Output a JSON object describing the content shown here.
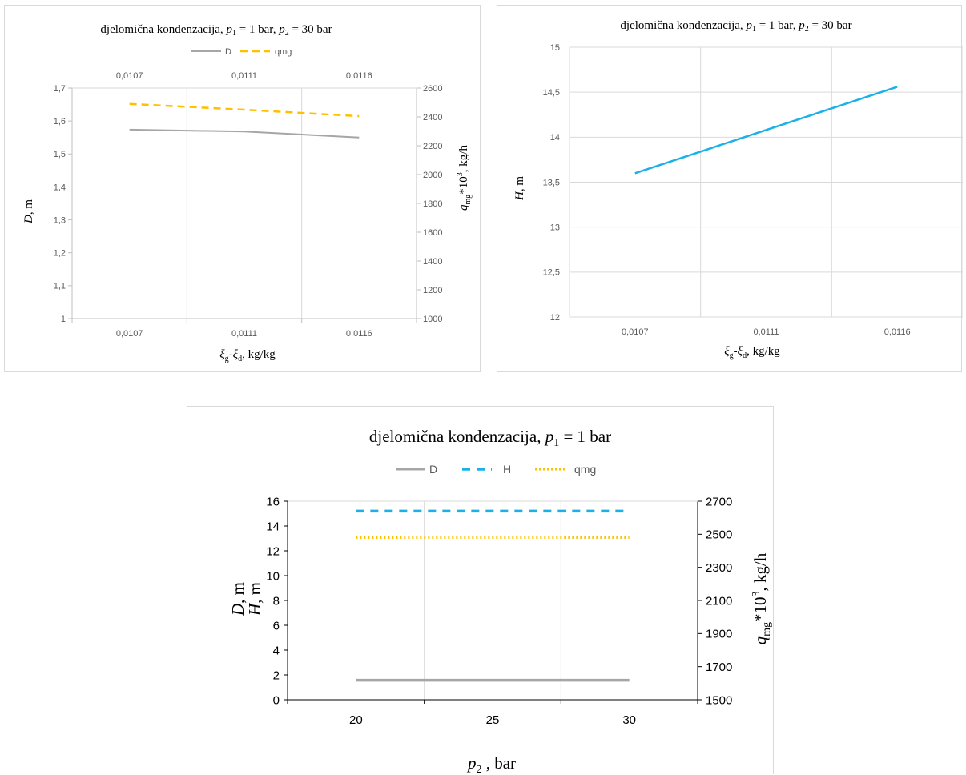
{
  "chart_data": [
    {
      "type": "line",
      "title_prefix": "djelomična kondenzacija, ",
      "title_p1_val": " = 1 bar,  ",
      "title_p2_val": " = 30 bar",
      "legend": [
        "D",
        "qmg"
      ],
      "categories": [
        "0,0107",
        "0,0111",
        "0,0116"
      ],
      "top_categories": [
        "0,0107",
        "0,0111",
        "0,0116"
      ],
      "series": [
        {
          "name": "D",
          "axis": "left",
          "values": [
            1.574,
            1.568,
            1.55
          ],
          "color": "#a6a6a6",
          "dash": "solid"
        },
        {
          "name": "qmg",
          "axis": "right",
          "values": [
            2490,
            2450,
            2405
          ],
          "color": "#ffc000",
          "dash": "dashed"
        }
      ],
      "ylim": [
        1,
        1.7
      ],
      "yticks": [
        "1",
        "1,1",
        "1,2",
        "1,3",
        "1,4",
        "1,5",
        "1,6",
        "1,7"
      ],
      "y2lim": [
        1000,
        2600
      ],
      "y2ticks": [
        "1000",
        "1200",
        "1400",
        "1600",
        "1800",
        "2000",
        "2200",
        "2400",
        "2600"
      ],
      "ylabel": "D, m",
      "y2label": "qmg*10³, kg/h",
      "xlabel": "ξg-ξd, kg/kg",
      "grid": true
    },
    {
      "type": "line",
      "title_prefix": "djelomična kondenzacija, ",
      "title_p1_val": " = 1 bar,  ",
      "title_p2_val": " = 30 bar",
      "categories": [
        "0,0107",
        "0,0111",
        "0,0116"
      ],
      "series": [
        {
          "name": "H",
          "values": [
            13.6,
            14.08,
            14.56
          ],
          "color": "#1ab0e8"
        }
      ],
      "ylim": [
        12,
        15
      ],
      "yticks": [
        "12",
        "12,5",
        "13",
        "13,5",
        "14",
        "14,5",
        "15"
      ],
      "ylabel": "H, m",
      "xlabel": "ξg-ξd, kg/kg",
      "grid": true
    },
    {
      "type": "line",
      "title_prefix": "djelomična kondenzacija, ",
      "title_p1_val": " = 1 bar",
      "legend": [
        "D",
        "H",
        "qmg"
      ],
      "categories": [
        "20",
        "25",
        "30"
      ],
      "series": [
        {
          "name": "D",
          "axis": "left",
          "values": [
            1.57,
            1.57,
            1.57
          ],
          "color": "#a6a6a6",
          "dash": "solid"
        },
        {
          "name": "H",
          "axis": "left",
          "values": [
            15.2,
            15.2,
            15.2
          ],
          "color": "#1ab0e8",
          "dash": "dashed"
        },
        {
          "name": "qmg",
          "axis": "right",
          "values": [
            2480,
            2480,
            2480
          ],
          "color": "#ffc000",
          "dash": "dotted"
        }
      ],
      "ylim": [
        0,
        16
      ],
      "yticks": [
        "0",
        "2",
        "4",
        "6",
        "8",
        "10",
        "12",
        "14",
        "16"
      ],
      "y2lim": [
        1500,
        2700
      ],
      "y2ticks": [
        "1500",
        "1700",
        "1900",
        "2100",
        "2300",
        "2500",
        "2700"
      ],
      "ylabel": "D, m / H, m",
      "y2label": "qmg*10³, kg/h",
      "xlabel": "p2 , bar",
      "grid": true
    }
  ]
}
